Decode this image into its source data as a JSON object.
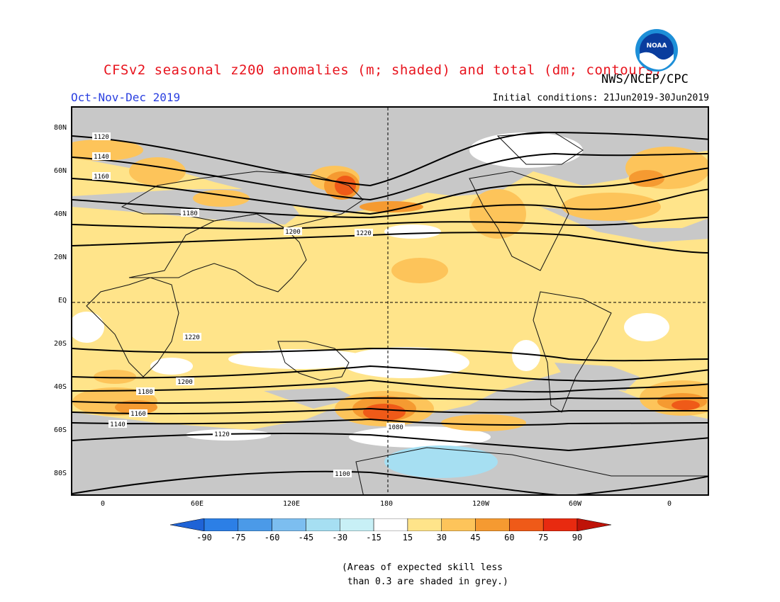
{
  "title": "CFSv2 seasonal z200 anomalies (m; shaded) and total (dm; contours)",
  "agency": "NWS/NCEP/CPC",
  "logo_text": "NOAA",
  "season": "Oct-Nov-Dec 2019",
  "initial_conditions": "Initial conditions: 21Jun2019-30Jun2019",
  "lat_labels": [
    "80N",
    "60N",
    "40N",
    "20N",
    "EQ",
    "20S",
    "40S",
    "60S",
    "80S"
  ],
  "lon_labels": [
    "0",
    "60E",
    "120E",
    "180",
    "120W",
    "60W",
    "0"
  ],
  "contour_labels": [
    "1120",
    "1140",
    "1160",
    "1180",
    "1200",
    "1220",
    "1220",
    "1200",
    "1180",
    "1160",
    "1140",
    "1120",
    "1100",
    "1080"
  ],
  "colorbar": {
    "labels": [
      "-90",
      "-75",
      "-60",
      "-45",
      "-30",
      "-15",
      "15",
      "30",
      "45",
      "60",
      "75",
      "90"
    ],
    "colors": [
      "#1f63d6",
      "#2c7fe6",
      "#4b9ae8",
      "#7cbef0",
      "#a6dff2",
      "#c8f0f6",
      "#ffffff",
      "#ffe48a",
      "#fdc45a",
      "#f59a31",
      "#ef5a18",
      "#e82a10",
      "#bf1308"
    ]
  },
  "note": "(Areas of expected skill less\n than 0.3 are shaded in grey.)"
}
